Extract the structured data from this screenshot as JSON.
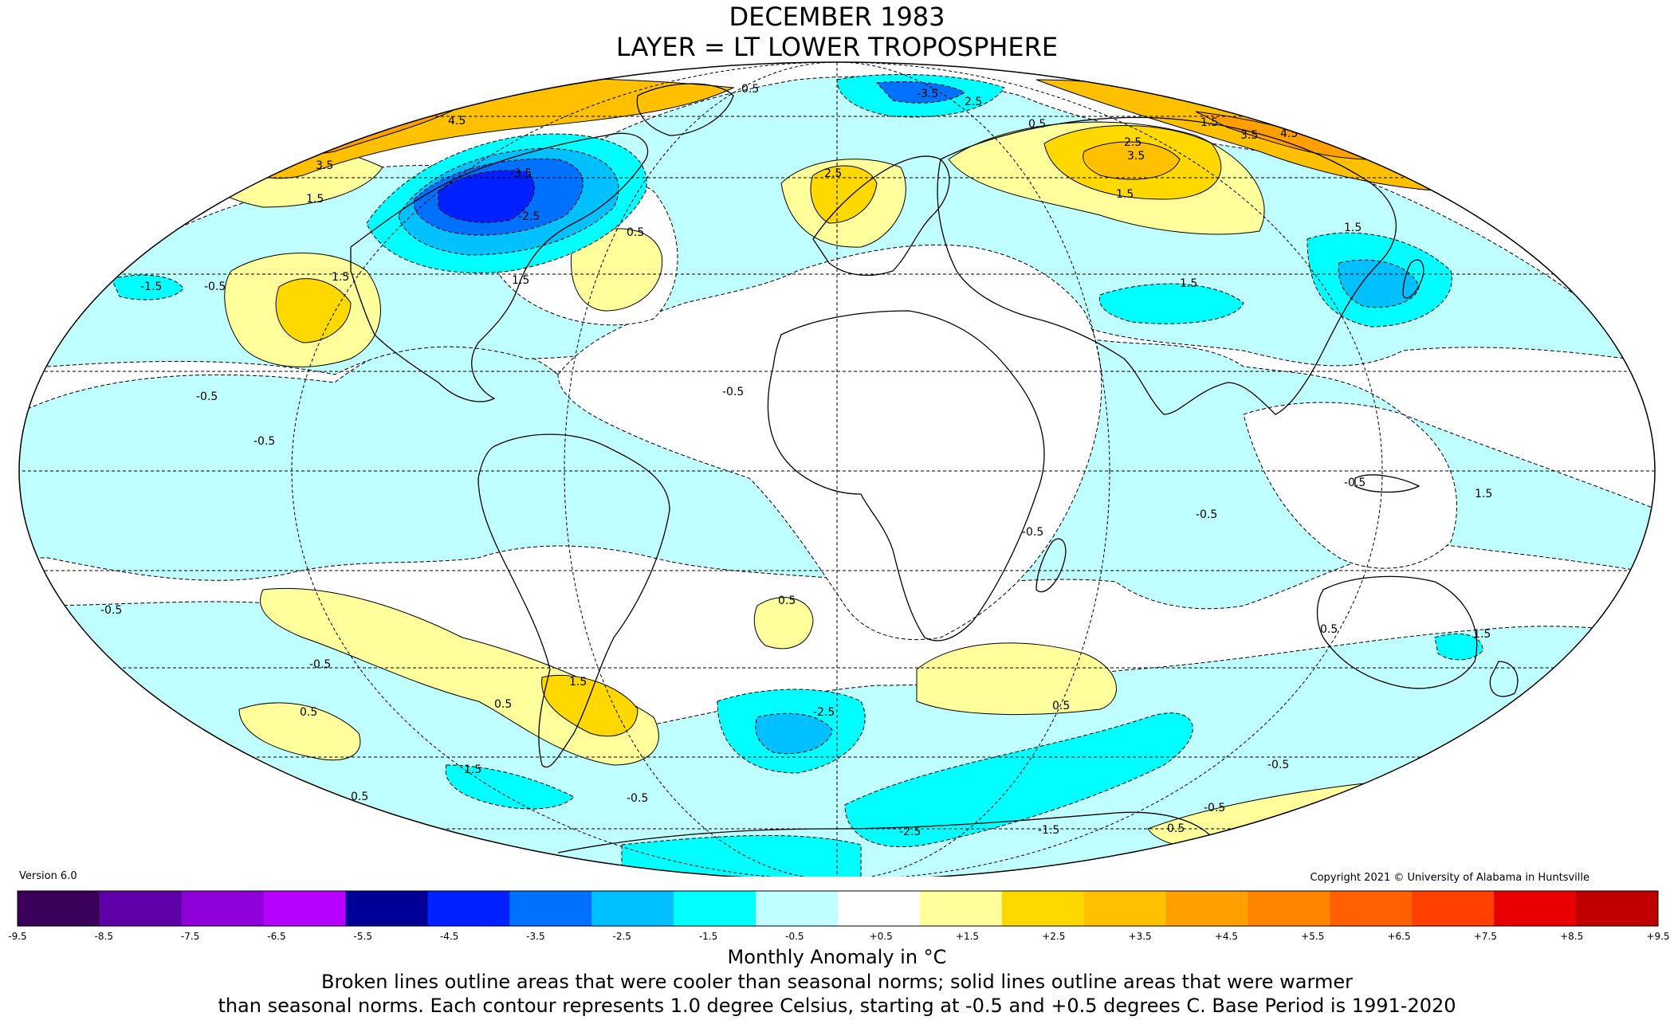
{
  "title": {
    "line1": "DECEMBER 1983",
    "line2": "LAYER = LT LOWER TROPOSPHERE"
  },
  "version": "Version 6.0",
  "copyright": "Copyright 2021 © University of Alabama in Huntsville",
  "projection": "mollweide",
  "legend": {
    "colors": [
      "#3a005a",
      "#6000a8",
      "#9000d8",
      "#b800ff",
      "#000098",
      "#0020ff",
      "#0070ff",
      "#00c0ff",
      "#00ffff",
      "#c0ffff",
      "#ffffff",
      "#ffff9c",
      "#ffd800",
      "#ffc000",
      "#ffa000",
      "#ff8400",
      "#ff6000",
      "#ff4000",
      "#e80000",
      "#c00000"
    ],
    "ticks": [
      "-9.5",
      "-8.5",
      "-7.5",
      "-6.5",
      "-5.5",
      "-4.5",
      "-3.5",
      "-2.5",
      "-1.5",
      "-0.5",
      "+0.5",
      "+1.5",
      "+2.5",
      "+3.5",
      "+4.5",
      "+5.5",
      "+6.5",
      "+7.5",
      "+8.5",
      "+9.5"
    ],
    "unit_label": "Monthly Anomaly in °C"
  },
  "note": {
    "line1": "Broken lines outline areas that were cooler than seasonal norms; solid lines outline areas that were warmer",
    "line2": "than seasonal norms. Each contour represents 1.0 degree Celsius, starting at -0.5 and +0.5 degrees C. Base Period is 1991-2020"
  },
  "contour_labels": [
    "-0.5",
    "0.5",
    "1.5",
    "-1.5",
    "2.5",
    "-2.5",
    "3.5",
    "-3.5",
    "4.5"
  ]
}
